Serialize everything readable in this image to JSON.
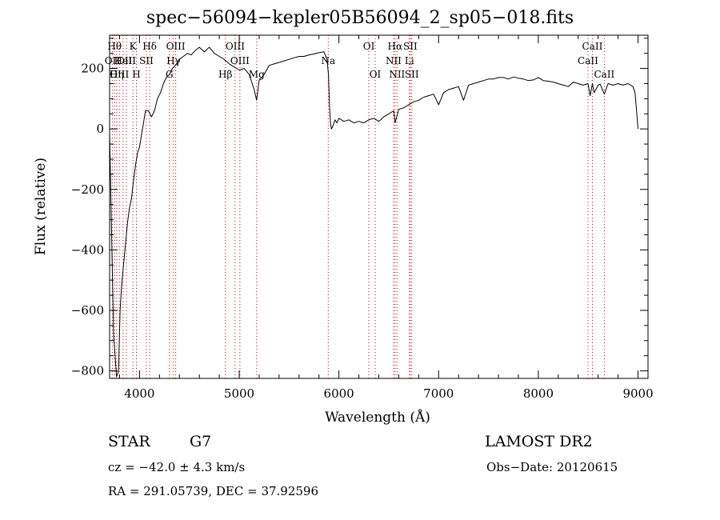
{
  "chart_data": {
    "type": "line",
    "title": "spec−56094−kepler05B56094_2_sp05−018.fits",
    "xlabel": "Wavelength (Å)",
    "ylabel": "Flux (relative)",
    "xlim": [
      3700,
      9100
    ],
    "ylim": [
      -825,
      310
    ],
    "xticks": [
      4000,
      5000,
      6000,
      7000,
      8000,
      9000
    ],
    "yticks": [
      -800,
      -600,
      -400,
      -200,
      0,
      200
    ],
    "tick_labels": {
      "x": [
        "4000",
        "5000",
        "6000",
        "7000",
        "8000",
        "9000"
      ],
      "y": [
        "−800",
        "−600",
        "−400",
        "−200",
        "0",
        "200"
      ]
    },
    "grid": false,
    "series": [
      {
        "x": [
          3700,
          3740,
          3770,
          3790,
          3805,
          3820,
          3840,
          3860,
          3880,
          3900,
          3920,
          3940,
          3960,
          3980,
          4000,
          4030,
          4060,
          4090,
          4120,
          4150,
          4180,
          4210,
          4240,
          4270,
          4300,
          4330,
          4360,
          4400,
          4440,
          4480,
          4520,
          4560,
          4600,
          4650,
          4700,
          4750,
          4800,
          4850,
          4900,
          4950,
          5000,
          5050,
          5100,
          5150,
          5175,
          5200,
          5250,
          5300,
          5350,
          5400,
          5450,
          5500,
          5550,
          5600,
          5650,
          5700,
          5750,
          5800,
          5850,
          5880,
          5895,
          5905,
          5915,
          5925,
          5940,
          5960,
          5980,
          6000,
          6050,
          6100,
          6150,
          6200,
          6250,
          6300,
          6350,
          6400,
          6450,
          6500,
          6550,
          6563,
          6600,
          6650,
          6700,
          6750,
          6800,
          6850,
          6900,
          6950,
          7000,
          7050,
          7100,
          7150,
          7200,
          7250,
          7300,
          7350,
          7400,
          7450,
          7500,
          7550,
          7600,
          7650,
          7700,
          7750,
          7800,
          7850,
          7900,
          7950,
          8000,
          8050,
          8100,
          8150,
          8200,
          8250,
          8300,
          8350,
          8400,
          8450,
          8498,
          8520,
          8542,
          8560,
          8600,
          8620,
          8662,
          8700,
          8750,
          8800,
          8850,
          8900,
          8950,
          8970,
          8985,
          9000
        ],
        "y": [
          -10,
          -680,
          -820,
          -800,
          -600,
          -520,
          -450,
          -380,
          -310,
          -260,
          -230,
          -170,
          -120,
          -80,
          -60,
          0,
          60,
          60,
          40,
          60,
          100,
          120,
          150,
          170,
          180,
          200,
          210,
          230,
          240,
          250,
          245,
          260,
          270,
          255,
          270,
          250,
          240,
          230,
          215,
          205,
          195,
          200,
          180,
          130,
          95,
          160,
          180,
          210,
          215,
          220,
          225,
          230,
          235,
          240,
          240,
          245,
          248,
          252,
          255,
          230,
          180,
          80,
          20,
          0,
          10,
          30,
          20,
          35,
          25,
          30,
          20,
          25,
          20,
          30,
          35,
          25,
          40,
          50,
          60,
          20,
          65,
          70,
          80,
          90,
          95,
          105,
          110,
          115,
          80,
          120,
          130,
          135,
          140,
          95,
          145,
          150,
          155,
          160,
          165,
          165,
          170,
          170,
          165,
          172,
          168,
          165,
          160,
          162,
          170,
          160,
          158,
          155,
          150,
          145,
          140,
          155,
          150,
          145,
          150,
          110,
          150,
          120,
          145,
          148,
          115,
          150,
          145,
          150,
          145,
          150,
          140,
          120,
          60,
          0
        ]
      }
    ],
    "line_labels": [
      {
        "lines": [
          3727
        ],
        "text": "OII",
        "row": 2
      },
      {
        "lines": [
          3750
        ],
        "text": "Hθ",
        "row": 1
      },
      {
        "lines": [
          3771
        ],
        "text": "Hη",
        "row": 3
      },
      {
        "lines": [
          3798
        ],
        "text": "OIII",
        "row": 3
      },
      {
        "lines": [
          3835
        ],
        "text": "HeI",
        "row": 2
      },
      {
        "lines": [
          3869
        ],
        "text": "OIII",
        "row": 2
      },
      {
        "lines": [
          3934
        ],
        "text": "K",
        "row": 1
      },
      {
        "lines": [
          3969
        ],
        "text": "H",
        "row": 3
      },
      {
        "lines": [
          4069
        ],
        "text": "SII",
        "row": 2
      },
      {
        "lines": [
          4102
        ],
        "text": "Hδ",
        "row": 1
      },
      {
        "lines": [
          4300
        ],
        "text": "G",
        "row": 3
      },
      {
        "lines": [
          4341
        ],
        "text": "Hγ",
        "row": 2
      },
      {
        "lines": [
          4363
        ],
        "text": "OIII",
        "row": 1
      },
      {
        "lines": [
          4861
        ],
        "text": "Hβ",
        "row": 3
      },
      {
        "lines": [
          4959
        ],
        "text": "OIII",
        "row": 1
      },
      {
        "lines": [
          5007
        ],
        "text": "OIII",
        "row": 2
      },
      {
        "lines": [
          5175
        ],
        "text": "Mg",
        "row": 3
      },
      {
        "lines": [
          5893
        ],
        "text": "Na",
        "row": 2
      },
      {
        "lines": [
          6300
        ],
        "text": "OI",
        "row": 1
      },
      {
        "lines": [
          6364
        ],
        "text": "OI",
        "row": 3
      },
      {
        "lines": [
          6548
        ],
        "text": "NII",
        "row": 2
      },
      {
        "lines": [
          6563
        ],
        "text": "Hα",
        "row": 1
      },
      {
        "lines": [
          6583
        ],
        "text": "NII",
        "row": 3
      },
      {
        "lines": [
          6707
        ],
        "text": "Li",
        "row": 2
      },
      {
        "lines": [
          6716
        ],
        "text": "SII",
        "row": 1
      },
      {
        "lines": [
          6731
        ],
        "text": "SII",
        "row": 3
      },
      {
        "lines": [
          8498
        ],
        "text": "CaII",
        "row": 2
      },
      {
        "lines": [
          8542
        ],
        "text": "CaII",
        "row": 1
      },
      {
        "lines": [
          8662
        ],
        "text": "CaII",
        "row": 3
      }
    ]
  },
  "info": {
    "class": "STAR",
    "subclass": "G7",
    "survey": "LAMOST DR2",
    "cz": "cz = −42.0 ± 4.3 km/s",
    "obs_date": "Obs−Date: 20120615",
    "radec": "RA = 291.05739, DEC =  37.92596"
  },
  "colors": {
    "spectrum": "#000000",
    "line_markers": "#c00000",
    "axes": "#000000",
    "background": "#ffffff"
  }
}
